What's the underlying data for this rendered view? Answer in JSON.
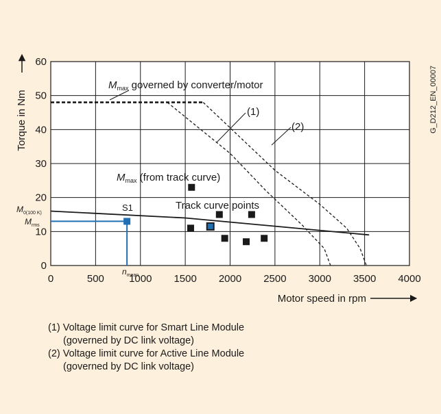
{
  "figure": {
    "id_label": "G_D212_EN_00007",
    "colors": {
      "background": "#fdf0dc",
      "plot": "#ffffff",
      "ink": "#1a1a1a",
      "highlight": "#1f6fb4"
    }
  },
  "chart_data": {
    "type": "line",
    "xlabel": "Motor speed in rpm",
    "ylabel": "Torque in Nm",
    "xlim": [
      0,
      4000
    ],
    "ylim": [
      0,
      60
    ],
    "x_ticks": [
      0,
      500,
      1000,
      1500,
      2000,
      2500,
      3000,
      3500,
      4000
    ],
    "y_ticks": [
      0,
      10,
      20,
      30,
      40,
      50,
      60
    ],
    "grid": true,
    "series": [
      {
        "name": "M_max governed by converter/motor",
        "style": "dashed-bold",
        "x": [
          0,
          1700
        ],
        "y": [
          48,
          48
        ]
      },
      {
        "name": "(1)",
        "style": "dashed",
        "x": [
          1300,
          2000,
          2400,
          2800,
          3050,
          3120
        ],
        "y": [
          48,
          33,
          22,
          12,
          5,
          0
        ]
      },
      {
        "name": "(2)",
        "style": "dashed",
        "x": [
          1700,
          2500,
          3000,
          3300,
          3450,
          3520
        ],
        "y": [
          48,
          28,
          18,
          11,
          5,
          0
        ]
      },
      {
        "name": "Track curve",
        "style": "solid",
        "x": [
          0,
          1500,
          3550
        ],
        "y": [
          16,
          14,
          9
        ]
      }
    ],
    "points": {
      "track_curve_points": [
        [
          1570,
          23
        ],
        [
          1560,
          11
        ],
        [
          1880,
          15
        ],
        [
          1940,
          8
        ],
        [
          2240,
          15
        ],
        [
          2180,
          7
        ],
        [
          2380,
          8
        ]
      ],
      "highlighted_point": [
        1780,
        11.5
      ],
      "s1_point": [
        850,
        13
      ]
    },
    "annotations": {
      "mmax_motor": {
        "main": "M",
        "sub": "max",
        "rest": " governed by converter/motor"
      },
      "mmax_track": {
        "main": "M",
        "sub": "max",
        "rest": " (from track curve)"
      },
      "track_points": "Track curve points",
      "curve1": "(1)",
      "curve2": "(2)",
      "s1": "S1",
      "m0": {
        "main": "M",
        "sub": "0(100 K)"
      },
      "mrms": {
        "main": "M",
        "sub": "rms"
      },
      "nmean": {
        "main": "n",
        "sub": "mean"
      }
    }
  },
  "legend": {
    "line1": "(1) Voltage limit curve for Smart Line Module",
    "line2": "(governed by DC link voltage)",
    "line3": "(2) Voltage limit curve for Active Line Module",
    "line4": "(governed by DC link voltage)"
  }
}
